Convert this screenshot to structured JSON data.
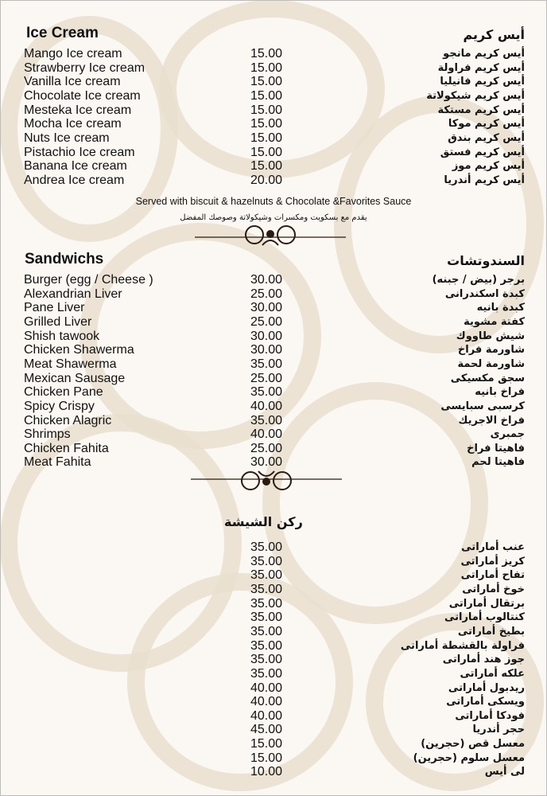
{
  "ice_cream": {
    "title_en": "Ice Cream",
    "title_ar": "أيس كريم",
    "items": [
      {
        "en": "Mango Ice cream",
        "price": "15.00",
        "ar": "أيس كريم مانجو"
      },
      {
        "en": "Strawberry Ice cream",
        "price": "15.00",
        "ar": "أيس كريم فراولة"
      },
      {
        "en": "Vanilla Ice cream",
        "price": "15.00",
        "ar": "أيس كريم فانيليا"
      },
      {
        "en": "Chocolate Ice cream",
        "price": "15.00",
        "ar": "أيس كريم شيكولاتة"
      },
      {
        "en": "Mesteka Ice cream",
        "price": "15.00",
        "ar": "أيس كريم مستكة"
      },
      {
        "en": "Mocha Ice cream",
        "price": "15.00",
        "ar": "أيس كريم موكا"
      },
      {
        "en": "Nuts Ice cream",
        "price": "15.00",
        "ar": "أيس كريم بندق"
      },
      {
        "en": "Pistachio Ice cream",
        "price": "15.00",
        "ar": "أيس كريم فستق"
      },
      {
        "en": "Banana Ice cream",
        "price": "15.00",
        "ar": "أيس كريم موز"
      },
      {
        "en": "Andrea Ice cream",
        "price": "20.00",
        "ar": "أيس كريم أندريا"
      }
    ],
    "note_en": "Served with biscuit & hazelnuts & Chocolate &Favorites Sauce",
    "note_ar": "يقدم مع بسكويت ومكسرات وشيكولاتة وصوصك المفضل"
  },
  "sandwiches": {
    "title_en": "Sandwichs",
    "title_ar": "السندوتشات",
    "items": [
      {
        "en": "Burger (egg / Cheese )",
        "price": "30.00",
        "ar": "برجر (بيض / جبنه)"
      },
      {
        "en": "Alexandrian Liver",
        "price": "25.00",
        "ar": "كبدة اسكندرانى"
      },
      {
        "en": "Pane Liver",
        "price": "30.00",
        "ar": "كبدة بانيه"
      },
      {
        "en": "Grilled Liver",
        "price": "25.00",
        "ar": "كفتة مشوية"
      },
      {
        "en": "Shish tawook",
        "price": "30.00",
        "ar": "شيش طاووك"
      },
      {
        "en": "Chicken Shawerma",
        "price": "30.00",
        "ar": "شاورمة فراخ"
      },
      {
        "en": "Meat Shawerma",
        "price": "35.00",
        "ar": "شاورمة لحمة"
      },
      {
        "en": "Mexican Sausage",
        "price": "25.00",
        "ar": "سجق مكسيكى"
      },
      {
        "en": "Chicken Pane",
        "price": "35.00",
        "ar": "فراخ بانيه"
      },
      {
        "en": "Spicy Crispy",
        "price": "40.00",
        "ar": "كرسبى سبايسى"
      },
      {
        "en": "Chicken Alagric",
        "price": "35.00",
        "ar": "فراخ الاجريك"
      },
      {
        "en": "Shrimps",
        "price": "40.00",
        "ar": "جمبرى"
      },
      {
        "en": "Chicken Fahita",
        "price": "25.00",
        "ar": "فاهيتا فراخ"
      },
      {
        "en": "Meat Fahita",
        "price": "30.00",
        "ar": "فاهيتا لحم"
      }
    ]
  },
  "shisha": {
    "title_ar": "ركن الشيشة",
    "items": [
      {
        "price": "35.00",
        "ar": "عنب أماراتى"
      },
      {
        "price": "35.00",
        "ar": "كريز أماراتى"
      },
      {
        "price": "35.00",
        "ar": "تفاح أماراتى"
      },
      {
        "price": "35.00",
        "ar": "خوخ أماراتى"
      },
      {
        "price": "35.00",
        "ar": "برتقال أماراتى"
      },
      {
        "price": "35.00",
        "ar": "كنتالوب أماراتى"
      },
      {
        "price": "35.00",
        "ar": "بطيخ أماراتى"
      },
      {
        "price": "35.00",
        "ar": "فراولة بالقشطة أماراتى"
      },
      {
        "price": "35.00",
        "ar": "جوز هند أماراتى"
      },
      {
        "price": "35.00",
        "ar": "علكه أماراتى"
      },
      {
        "price": "40.00",
        "ar": "ريدبول أماراتى"
      },
      {
        "price": "40.00",
        "ar": "ويسكى أماراتى"
      },
      {
        "price": "40.00",
        "ar": "فودكا أماراتى"
      },
      {
        "price": "45.00",
        "ar": "حجر أندريا"
      },
      {
        "price": "15.00",
        "ar": "معسل قص (حجرين)"
      },
      {
        "price": "15.00",
        "ar": "معسل سلوم (حجرين)"
      },
      {
        "price": "10.00",
        "ar": "لى أيس"
      }
    ]
  },
  "colors": {
    "pattern": "#e9dfcf",
    "background": "#fbf8f3",
    "text": "#111111",
    "ornament": "#2a1a10"
  }
}
